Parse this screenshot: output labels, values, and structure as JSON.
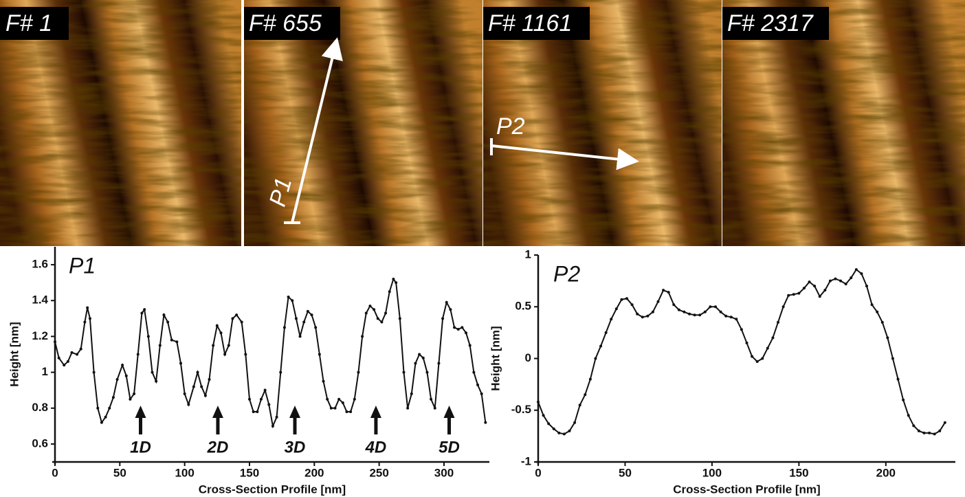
{
  "panels": [
    {
      "label": "F# 1"
    },
    {
      "label": "F# 655",
      "profile": "P1"
    },
    {
      "label": "F# 1161",
      "profile": "P2"
    },
    {
      "label": "F# 2317"
    }
  ],
  "chart_data": [
    {
      "type": "line",
      "title": "P1",
      "x_label": "Cross-Section Profile [nm]",
      "y_label": "Height [nm]",
      "color": "#111111",
      "markers": true,
      "xlim": [
        0,
        335
      ],
      "ylim": [
        0.5,
        1.7
      ],
      "xticks": [
        0,
        50,
        100,
        150,
        200,
        250,
        300
      ],
      "yticks": [
        0.6,
        0.8,
        1,
        1.2,
        1.4,
        1.6
      ],
      "x": [
        0,
        3,
        7,
        10,
        13,
        17,
        20,
        23,
        25,
        27,
        30,
        33,
        36,
        39,
        42,
        45,
        48,
        52,
        55,
        58,
        61,
        64,
        67,
        69,
        72,
        75,
        78,
        81,
        84,
        87,
        90,
        94,
        97,
        100,
        103,
        107,
        110,
        113,
        116,
        119,
        122,
        125,
        128,
        131,
        134,
        137,
        140,
        144,
        147,
        150,
        153,
        156,
        159,
        162,
        165,
        168,
        171,
        174,
        177,
        180,
        183,
        186,
        189,
        192,
        195,
        198,
        201,
        204,
        207,
        210,
        213,
        216,
        219,
        222,
        225,
        228,
        231,
        234,
        237,
        240,
        243,
        246,
        249,
        252,
        255,
        258,
        261,
        263,
        266,
        269,
        272,
        275,
        278,
        281,
        284,
        287,
        290,
        293,
        296,
        299,
        302,
        305,
        308,
        311,
        314,
        317,
        320,
        323,
        326,
        329,
        332
      ],
      "values": [
        1.17,
        1.08,
        1.04,
        1.06,
        1.11,
        1.1,
        1.13,
        1.28,
        1.36,
        1.3,
        1.0,
        0.8,
        0.72,
        0.75,
        0.8,
        0.86,
        0.96,
        1.04,
        0.98,
        0.85,
        0.88,
        1.1,
        1.33,
        1.35,
        1.2,
        1.0,
        0.95,
        1.15,
        1.32,
        1.28,
        1.18,
        1.17,
        1.05,
        0.88,
        0.82,
        0.92,
        1.0,
        0.92,
        0.87,
        0.96,
        1.15,
        1.26,
        1.22,
        1.1,
        1.15,
        1.3,
        1.32,
        1.28,
        1.1,
        0.85,
        0.78,
        0.78,
        0.85,
        0.9,
        0.82,
        0.7,
        0.75,
        1.0,
        1.25,
        1.42,
        1.4,
        1.3,
        1.2,
        1.28,
        1.34,
        1.32,
        1.25,
        1.1,
        0.95,
        0.85,
        0.8,
        0.8,
        0.85,
        0.83,
        0.78,
        0.78,
        0.85,
        1.0,
        1.2,
        1.33,
        1.37,
        1.35,
        1.3,
        1.28,
        1.33,
        1.45,
        1.52,
        1.5,
        1.3,
        1.0,
        0.8,
        0.88,
        1.05,
        1.1,
        1.08,
        1.0,
        0.85,
        0.8,
        1.05,
        1.3,
        1.39,
        1.35,
        1.25,
        1.24,
        1.25,
        1.22,
        1.15,
        1.0,
        0.93,
        0.88,
        0.72
      ],
      "annotations": [
        {
          "text": "1D",
          "x": 66
        },
        {
          "text": "2D",
          "x": 125.6
        },
        {
          "text": "3D",
          "x": 185
        },
        {
          "text": "4D",
          "x": 247.5
        },
        {
          "text": "5D",
          "x": 304
        }
      ]
    },
    {
      "type": "line",
      "title": "P2",
      "x_label": "Cross-Section Profile [nm]",
      "y_label": "Height [nm]",
      "color": "#111111",
      "markers": true,
      "xlim": [
        0,
        240
      ],
      "ylim": [
        -1,
        1
      ],
      "xticks": [
        0,
        50,
        100,
        150,
        200
      ],
      "yticks": [
        -1,
        -0.5,
        0,
        0.5,
        1
      ],
      "x": [
        0,
        3,
        6,
        9,
        12,
        15,
        18,
        21,
        24,
        27,
        30,
        33,
        36,
        39,
        42,
        45,
        48,
        51,
        54,
        57,
        60,
        63,
        66,
        69,
        72,
        75,
        78,
        81,
        84,
        87,
        90,
        93,
        96,
        99,
        102,
        105,
        108,
        111,
        114,
        117,
        120,
        123,
        126,
        129,
        132,
        135,
        138,
        141,
        144,
        147,
        150,
        153,
        156,
        159,
        162,
        165,
        168,
        171,
        174,
        177,
        180,
        183,
        186,
        189,
        192,
        195,
        198,
        201,
        204,
        207,
        210,
        213,
        216,
        219,
        222,
        225,
        228,
        231,
        234
      ],
      "values": [
        -0.42,
        -0.55,
        -0.63,
        -0.68,
        -0.72,
        -0.73,
        -0.7,
        -0.62,
        -0.45,
        -0.35,
        -0.2,
        0.0,
        0.12,
        0.25,
        0.38,
        0.48,
        0.57,
        0.58,
        0.52,
        0.43,
        0.4,
        0.41,
        0.45,
        0.55,
        0.66,
        0.64,
        0.52,
        0.47,
        0.45,
        0.43,
        0.42,
        0.42,
        0.45,
        0.5,
        0.5,
        0.45,
        0.41,
        0.4,
        0.38,
        0.28,
        0.15,
        0.02,
        -0.03,
        0.0,
        0.1,
        0.2,
        0.35,
        0.5,
        0.61,
        0.62,
        0.63,
        0.68,
        0.74,
        0.7,
        0.6,
        0.66,
        0.75,
        0.77,
        0.75,
        0.72,
        0.78,
        0.86,
        0.82,
        0.7,
        0.52,
        0.45,
        0.35,
        0.2,
        0.0,
        -0.2,
        -0.4,
        -0.55,
        -0.65,
        -0.7,
        -0.72,
        -0.72,
        -0.73,
        -0.7,
        -0.62
      ]
    }
  ]
}
